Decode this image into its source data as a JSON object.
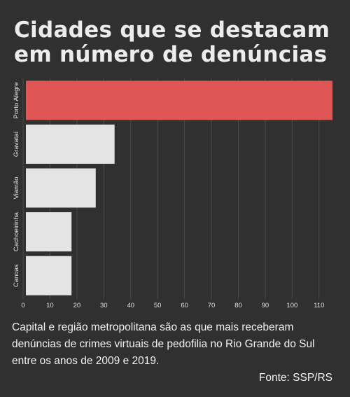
{
  "title_lines": [
    "Cidades que se destacam",
    "em número de denúncias"
  ],
  "caption": "Capital e região metropolitana são as que mais receberam denúncias de crimes virtuais de pedofilia no Rio Grande do Sul entre os anos de 2009 e 2019.",
  "source": "Fonte: SSP/RS",
  "colors": {
    "highlight": "#e05555",
    "bar": "#e4e4e4",
    "grid": "#4a4a4a",
    "axis_text": "#e0e0e0"
  },
  "chart_data": {
    "type": "bar",
    "orientation": "horizontal",
    "categories": [
      "Porto Alegre",
      "Gravataí",
      "Viamão",
      "Cachoeirinha",
      "Canoas"
    ],
    "values": [
      115,
      34,
      27,
      18,
      18
    ],
    "highlight_index": 0,
    "xlim": [
      0,
      115
    ],
    "xticks": [
      0,
      10,
      20,
      30,
      40,
      50,
      60,
      70,
      80,
      90,
      100,
      110
    ],
    "grid": true,
    "title": "",
    "xlabel": "",
    "ylabel": ""
  }
}
